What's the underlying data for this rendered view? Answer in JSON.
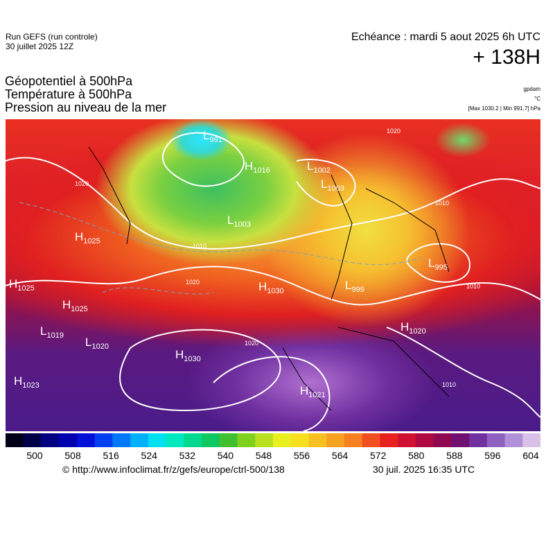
{
  "header": {
    "run": "Run GEFS (run controle)",
    "run_date": "30 juillet 2025 12Z",
    "valid_time": "Echéance : mardi 5 aout 2025 6h UTC",
    "lead": "+ 138H"
  },
  "titles": [
    "Géopotentiel à 500hPa",
    "Température à 500hPa",
    "Pression au niveau de la mer"
  ],
  "units": [
    "gpdam",
    "°C",
    "[Max 1030.2 | Min 991.7] hPa"
  ],
  "centers": [
    {
      "kind": "L",
      "value": "991"
    },
    {
      "kind": "H",
      "value": "1016"
    },
    {
      "kind": "L",
      "value": "1002"
    },
    {
      "kind": "L",
      "value": "1003"
    },
    {
      "kind": "L",
      "value": "1003"
    },
    {
      "kind": "H",
      "value": "1025"
    },
    {
      "kind": "H",
      "value": "1025"
    },
    {
      "kind": "H",
      "value": "1025"
    },
    {
      "kind": "L",
      "value": "1019"
    },
    {
      "kind": "L",
      "value": "1020"
    },
    {
      "kind": "H",
      "value": "1030"
    },
    {
      "kind": "H",
      "value": "1030"
    },
    {
      "kind": "H",
      "value": "1023"
    },
    {
      "kind": "H",
      "value": "1021"
    },
    {
      "kind": "L",
      "value": "995"
    },
    {
      "kind": "H",
      "value": "1020"
    },
    {
      "kind": "L",
      "value": "999"
    }
  ],
  "isobar_labels": [
    "1020",
    "1010",
    "1020",
    "1020",
    "1010",
    "1010",
    "1010",
    "1020"
  ],
  "colorbar": {
    "ticks": [
      500,
      508,
      516,
      524,
      532,
      540,
      548,
      556,
      564,
      572,
      580,
      588,
      596,
      604
    ]
  },
  "footer": {
    "url": "© http://www.infoclimat.fr/z/gefs/europe/ctrl-500/138",
    "generated": "30 juil. 2025 16:35 UTC"
  }
}
